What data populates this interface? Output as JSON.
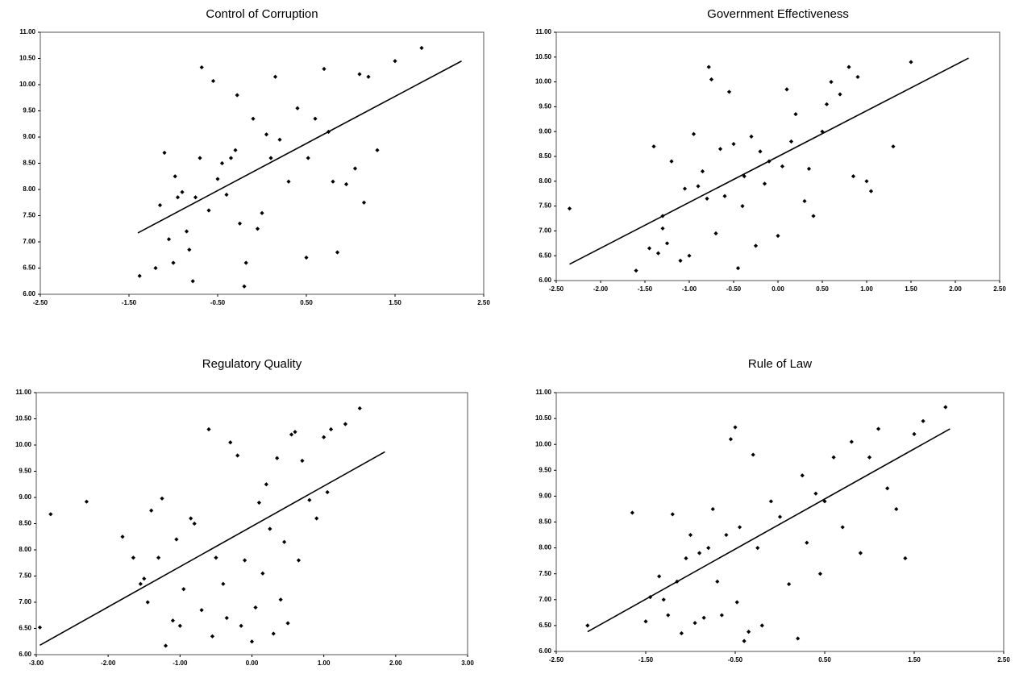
{
  "chart_data": [
    {
      "type": "scatter",
      "title": "Control of Corruption",
      "color": "#000000",
      "xlim": [
        -2.5,
        2.5
      ],
      "ylim": [
        6,
        11
      ],
      "xticks": [
        {
          "value": -2.5,
          "label": "-2.50"
        },
        {
          "value": -1.5,
          "label": "-1.50"
        },
        {
          "value": -0.5,
          "label": "-0.50"
        },
        {
          "value": 0.5,
          "label": "0.50"
        },
        {
          "value": 1.5,
          "label": "1.50"
        },
        {
          "value": 2.5,
          "label": "2.50"
        }
      ],
      "yticks": [
        {
          "value": 6,
          "label": "6.00"
        },
        {
          "value": 6.5,
          "label": "6.50"
        },
        {
          "value": 7,
          "label": "7.00"
        },
        {
          "value": 7.5,
          "label": "7.50"
        },
        {
          "value": 8,
          "label": "8.00"
        },
        {
          "value": 8.5,
          "label": "8.50"
        },
        {
          "value": 9,
          "label": "9.00"
        },
        {
          "value": 9.5,
          "label": "9.50"
        },
        {
          "value": 10,
          "label": "10.00"
        },
        {
          "value": 10.5,
          "label": "10.50"
        },
        {
          "value": 11,
          "label": "11.00"
        }
      ],
      "x": [
        -1.38,
        -1.2,
        -1.15,
        -1.1,
        -1.05,
        -1.0,
        -0.98,
        -0.95,
        -0.9,
        -0.85,
        -0.82,
        -0.78,
        -0.75,
        -0.7,
        -0.68,
        -0.6,
        -0.55,
        -0.5,
        -0.45,
        -0.4,
        -0.35,
        -0.3,
        -0.28,
        -0.25,
        -0.2,
        -0.18,
        -0.1,
        -0.05,
        0.0,
        0.05,
        0.1,
        0.15,
        0.2,
        0.3,
        0.4,
        0.5,
        0.52,
        0.6,
        0.7,
        0.75,
        0.8,
        0.85,
        0.95,
        1.05,
        1.1,
        1.15,
        1.2,
        1.3,
        1.5,
        1.8
      ],
      "values": [
        6.35,
        6.5,
        7.7,
        8.7,
        7.05,
        6.6,
        8.25,
        7.85,
        7.95,
        7.2,
        6.85,
        6.25,
        7.85,
        8.6,
        10.33,
        7.6,
        10.07,
        8.2,
        8.5,
        7.9,
        8.6,
        8.75,
        9.8,
        7.35,
        6.15,
        6.6,
        9.35,
        7.25,
        7.55,
        9.05,
        8.6,
        10.15,
        8.95,
        8.15,
        9.55,
        6.7,
        8.6,
        9.35,
        10.3,
        9.1,
        8.15,
        6.8,
        8.1,
        8.4,
        10.2,
        7.75,
        10.15,
        8.75,
        10.45,
        10.7
      ],
      "trendline": {
        "x": [
          -1.4,
          2.25
        ],
        "y": [
          7.17,
          10.45
        ]
      }
    },
    {
      "type": "scatter",
      "title": "Government Effectiveness",
      "color": "#000000",
      "xlim": [
        -2.5,
        2.5
      ],
      "ylim": [
        6,
        11
      ],
      "xticks": [
        {
          "value": -2.5,
          "label": "-2.50"
        },
        {
          "value": -2,
          "label": "-2.00"
        },
        {
          "value": -1.5,
          "label": "-1.50"
        },
        {
          "value": -1,
          "label": "-1.00"
        },
        {
          "value": -0.5,
          "label": "-0.50"
        },
        {
          "value": 0,
          "label": "0.00"
        },
        {
          "value": 0.5,
          "label": "0.50"
        },
        {
          "value": 1,
          "label": "1.00"
        },
        {
          "value": 1.5,
          "label": "1.50"
        },
        {
          "value": 2,
          "label": "2.00"
        },
        {
          "value": 2.5,
          "label": "2.50"
        }
      ],
      "yticks": [
        {
          "value": 6,
          "label": "6.00"
        },
        {
          "value": 6.5,
          "label": "6.50"
        },
        {
          "value": 7,
          "label": "7.00"
        },
        {
          "value": 7.5,
          "label": "7.50"
        },
        {
          "value": 8,
          "label": "8.00"
        },
        {
          "value": 8.5,
          "label": "8.50"
        },
        {
          "value": 9,
          "label": "9.00"
        },
        {
          "value": 9.5,
          "label": "9.50"
        },
        {
          "value": 10,
          "label": "10.00"
        },
        {
          "value": 10.5,
          "label": "10.50"
        },
        {
          "value": 11,
          "label": "11.00"
        }
      ],
      "x": [
        -2.35,
        -1.6,
        -1.45,
        -1.4,
        -1.35,
        -1.3,
        -1.3,
        -1.25,
        -1.2,
        -1.1,
        -1.05,
        -1.0,
        -0.95,
        -0.9,
        -0.85,
        -0.8,
        -0.78,
        -0.75,
        -0.7,
        -0.65,
        -0.6,
        -0.55,
        -0.5,
        -0.45,
        -0.4,
        -0.38,
        -0.3,
        -0.25,
        -0.2,
        -0.15,
        -0.1,
        0.0,
        0.05,
        0.1,
        0.15,
        0.2,
        0.3,
        0.35,
        0.4,
        0.5,
        0.55,
        0.6,
        0.7,
        0.8,
        0.85,
        0.9,
        1.0,
        1.05,
        1.3,
        1.5
      ],
      "values": [
        7.45,
        6.2,
        6.65,
        8.7,
        6.55,
        7.3,
        7.05,
        6.75,
        8.4,
        6.4,
        7.85,
        6.5,
        8.95,
        7.9,
        8.2,
        7.65,
        10.3,
        10.05,
        6.95,
        8.65,
        7.7,
        9.8,
        8.75,
        6.25,
        7.5,
        8.1,
        8.9,
        6.7,
        8.6,
        7.95,
        8.4,
        6.9,
        8.3,
        9.85,
        8.8,
        9.35,
        7.6,
        8.25,
        7.3,
        9.0,
        9.55,
        10.0,
        9.75,
        10.3,
        8.1,
        10.1,
        8.0,
        7.8,
        8.7,
        10.4
      ],
      "trendline": {
        "x": [
          -2.35,
          2.15
        ],
        "y": [
          6.33,
          10.48
        ]
      }
    },
    {
      "type": "scatter",
      "title": "Regulatory Quality",
      "color": "#000000",
      "xlim": [
        -3,
        3
      ],
      "ylim": [
        6,
        11
      ],
      "xticks": [
        {
          "value": -3,
          "label": "-3.00"
        },
        {
          "value": -2,
          "label": "-2.00"
        },
        {
          "value": -1,
          "label": "-1.00"
        },
        {
          "value": 0,
          "label": "0.00"
        },
        {
          "value": 1,
          "label": "1.00"
        },
        {
          "value": 2,
          "label": "2.00"
        },
        {
          "value": 3,
          "label": "3.00"
        }
      ],
      "yticks": [
        {
          "value": 6,
          "label": "6.00"
        },
        {
          "value": 6.5,
          "label": "6.50"
        },
        {
          "value": 7,
          "label": "7.00"
        },
        {
          "value": 7.5,
          "label": "7.50"
        },
        {
          "value": 8,
          "label": "8.00"
        },
        {
          "value": 8.5,
          "label": "8.50"
        },
        {
          "value": 9,
          "label": "9.00"
        },
        {
          "value": 9.5,
          "label": "9.50"
        },
        {
          "value": 10,
          "label": "10.00"
        },
        {
          "value": 10.5,
          "label": "10.50"
        },
        {
          "value": 11,
          "label": "11.00"
        }
      ],
      "x": [
        -2.95,
        -2.8,
        -2.3,
        -1.8,
        -1.65,
        -1.55,
        -1.5,
        -1.45,
        -1.4,
        -1.3,
        -1.25,
        -1.2,
        -1.1,
        -1.05,
        -1.0,
        -0.95,
        -0.85,
        -0.8,
        -0.7,
        -0.6,
        -0.55,
        -0.5,
        -0.4,
        -0.35,
        -0.3,
        -0.2,
        -0.15,
        -0.1,
        0.0,
        0.05,
        0.1,
        0.15,
        0.2,
        0.25,
        0.3,
        0.35,
        0.4,
        0.45,
        0.5,
        0.55,
        0.6,
        0.65,
        0.7,
        0.8,
        0.9,
        1.0,
        1.05,
        1.1,
        1.3,
        1.5
      ],
      "values": [
        6.52,
        8.68,
        8.92,
        8.25,
        7.85,
        7.35,
        7.45,
        7.0,
        8.75,
        7.85,
        8.98,
        6.17,
        6.65,
        8.2,
        6.55,
        7.25,
        8.6,
        8.5,
        6.85,
        10.3,
        6.35,
        7.85,
        7.35,
        6.7,
        10.05,
        9.8,
        6.55,
        7.8,
        6.25,
        6.9,
        8.9,
        7.55,
        9.25,
        8.4,
        6.4,
        9.75,
        7.05,
        8.15,
        6.6,
        10.2,
        10.25,
        7.8,
        9.7,
        8.95,
        8.6,
        10.15,
        9.1,
        10.3,
        10.4,
        10.7
      ],
      "trendline": {
        "x": [
          -2.95,
          1.85
        ],
        "y": [
          6.18,
          9.87
        ]
      }
    },
    {
      "type": "scatter",
      "title": "Rule of Law",
      "color": "#000000",
      "xlim": [
        -2.5,
        2.5
      ],
      "ylim": [
        6,
        11
      ],
      "xticks": [
        {
          "value": -2.5,
          "label": "-2.50"
        },
        {
          "value": -1.5,
          "label": "-1.50"
        },
        {
          "value": -0.5,
          "label": "-0.50"
        },
        {
          "value": 0.5,
          "label": "0.50"
        },
        {
          "value": 1.5,
          "label": "1.50"
        },
        {
          "value": 2.5,
          "label": "2.50"
        }
      ],
      "yticks": [
        {
          "value": 6,
          "label": "6.00"
        },
        {
          "value": 6.5,
          "label": "6.50"
        },
        {
          "value": 7,
          "label": "7.00"
        },
        {
          "value": 7.5,
          "label": "7.50"
        },
        {
          "value": 8,
          "label": "8.00"
        },
        {
          "value": 8.5,
          "label": "8.50"
        },
        {
          "value": 9,
          "label": "9.00"
        },
        {
          "value": 9.5,
          "label": "9.50"
        },
        {
          "value": 10,
          "label": "10.00"
        },
        {
          "value": 10.5,
          "label": "10.50"
        },
        {
          "value": 11,
          "label": "11.00"
        }
      ],
      "x": [
        -2.15,
        -1.65,
        -1.5,
        -1.45,
        -1.35,
        -1.3,
        -1.25,
        -1.2,
        -1.15,
        -1.1,
        -1.05,
        -1.0,
        -0.95,
        -0.9,
        -0.85,
        -0.8,
        -0.75,
        -0.7,
        -0.65,
        -0.6,
        -0.55,
        -0.5,
        -0.48,
        -0.45,
        -0.4,
        -0.35,
        -0.3,
        -0.25,
        -0.2,
        -0.1,
        0.0,
        0.1,
        0.2,
        0.25,
        0.3,
        0.4,
        0.45,
        0.5,
        0.6,
        0.7,
        0.8,
        0.9,
        1.0,
        1.1,
        1.2,
        1.3,
        1.4,
        1.5,
        1.6,
        1.85
      ],
      "values": [
        6.5,
        8.68,
        6.58,
        7.05,
        7.45,
        7.0,
        6.7,
        8.65,
        7.35,
        6.35,
        7.8,
        8.25,
        6.55,
        7.9,
        6.65,
        8.0,
        8.75,
        7.35,
        6.7,
        8.25,
        10.1,
        10.33,
        6.95,
        8.4,
        6.2,
        6.38,
        9.8,
        8.0,
        6.5,
        8.9,
        8.6,
        7.3,
        6.25,
        9.4,
        8.1,
        9.05,
        7.5,
        8.9,
        9.75,
        8.4,
        10.05,
        7.9,
        9.75,
        10.3,
        9.15,
        8.75,
        7.8,
        10.2,
        10.45,
        10.72
      ],
      "trendline": {
        "x": [
          -2.15,
          1.9
        ],
        "y": [
          6.38,
          10.3
        ]
      }
    }
  ]
}
